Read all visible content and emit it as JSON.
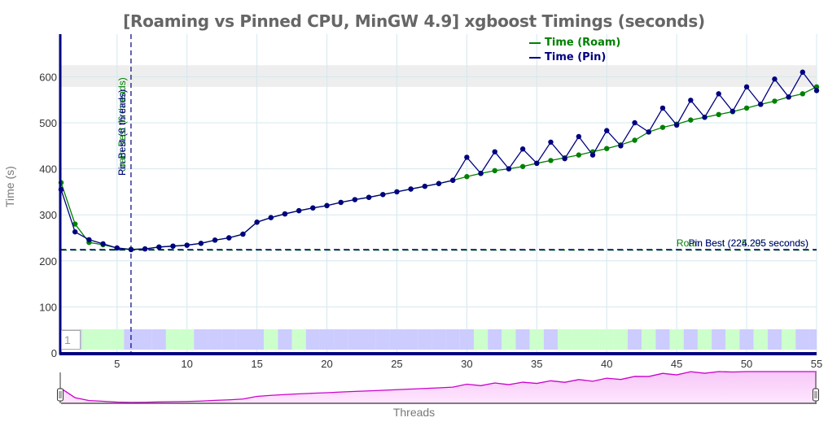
{
  "chart_data": {
    "type": "line",
    "title": "[Roaming vs Pinned CPU, MinGW 4.9] xgboost Timings (seconds)",
    "xlabel": "Threads",
    "ylabel": "Time (s)",
    "xlim": [
      1,
      55
    ],
    "ylim": [
      0,
      690
    ],
    "x_ticks": [
      5,
      10,
      15,
      20,
      25,
      30,
      35,
      40,
      45,
      50,
      55
    ],
    "y_ticks": [
      0,
      100,
      200,
      300,
      400,
      500,
      600
    ],
    "grid": true,
    "legend_position": "top-right",
    "x": [
      1,
      2,
      3,
      4,
      5,
      6,
      7,
      8,
      9,
      10,
      11,
      12,
      13,
      14,
      15,
      16,
      17,
      18,
      19,
      20,
      21,
      22,
      23,
      24,
      25,
      26,
      27,
      28,
      29,
      30,
      31,
      32,
      33,
      34,
      35,
      36,
      37,
      38,
      39,
      40,
      41,
      42,
      43,
      44,
      45,
      46,
      47,
      48,
      49,
      50,
      51,
      52,
      53,
      54,
      55
    ],
    "series": [
      {
        "name": "Time (Roam)",
        "color": "#008000",
        "values": [
          370,
          280,
          240,
          235,
          228,
          225,
          226,
          230,
          232,
          234,
          238,
          245,
          250,
          258,
          284,
          294,
          302,
          309,
          315,
          320,
          327,
          333,
          338,
          344,
          350,
          356,
          362,
          368,
          375,
          383,
          390,
          396,
          400,
          405,
          412,
          418,
          424,
          430,
          437,
          444,
          452,
          462,
          480,
          490,
          497,
          506,
          512,
          518,
          524,
          532,
          540,
          547,
          556,
          563,
          578
        ]
      },
      {
        "name": "Time (Pin)",
        "color": "#000080",
        "values": [
          355,
          263,
          246,
          237,
          228,
          224.3,
          226,
          230,
          232,
          234,
          238,
          245,
          250,
          258,
          284,
          294,
          302,
          309,
          315,
          320,
          327,
          333,
          338,
          344,
          350,
          356,
          362,
          368,
          375,
          425,
          390,
          437,
          400,
          443,
          412,
          458,
          422,
          470,
          430,
          483,
          450,
          500,
          480,
          532,
          495,
          549,
          512,
          563,
          525,
          578,
          540,
          595,
          556,
          610,
          570
        ]
      }
    ],
    "annotations": [
      {
        "type": "vline",
        "x": 6,
        "label_roam": "Roam Best (6 threads)",
        "label_pin": "Pin Best (6 threads)"
      },
      {
        "type": "hline",
        "y": 224.3,
        "label_roam": "Roam Best (225.205 seconds)",
        "label_pin": "Pin Best (224.295 seconds)"
      },
      {
        "type": "band",
        "y_from": 578,
        "y_to": 625,
        "color": "#eeeeee"
      }
    ],
    "winner_band": [
      "pin",
      "pin",
      "roam",
      "roam",
      "roam",
      "pin",
      "pin",
      "pin",
      "roam",
      "roam",
      "pin",
      "pin",
      "pin",
      "pin",
      "pin",
      "roam",
      "pin",
      "roam",
      "pin",
      "pin",
      "pin",
      "pin",
      "pin",
      "pin",
      "pin",
      "pin",
      "pin",
      "pin",
      "pin",
      "pin",
      "roam",
      "pin",
      "roam",
      "pin",
      "roam",
      "pin",
      "roam",
      "roam",
      "roam",
      "roam",
      "roam",
      "pin",
      "roam",
      "pin",
      "roam",
      "pin",
      "roam",
      "pin",
      "roam",
      "pin",
      "roam",
      "pin",
      "roam",
      "pin",
      "pin"
    ],
    "range_selector": {
      "from": 1,
      "to": 55
    },
    "rolling_period": "1"
  },
  "labels": {
    "title": "[Roaming vs Pinned CPU, MinGW 4.9] xgboost Timings (seconds)",
    "legend_roam": "Time (Roam)",
    "legend_pin": "Time (Pin)",
    "y_title": "Time (s)",
    "x_title": "Threads",
    "roller_value": "1"
  },
  "colors": {
    "roam": "#008000",
    "pin": "#000080",
    "band_roam": "#ccffcc",
    "band_pin": "#ccccff",
    "grid": "#d4e8ee",
    "range_fill": "#ffd0ff",
    "range_line": "#cc00cc"
  }
}
